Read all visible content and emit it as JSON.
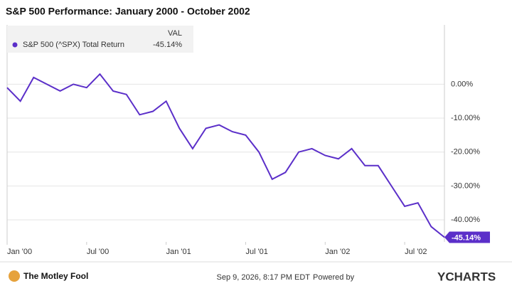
{
  "chart_data": {
    "type": "line",
    "title": "S&P 500 Performance: January 2000 - October 2002",
    "legend_header": "VAL",
    "x": [
      "2000-01",
      "2000-02",
      "2000-03",
      "2000-04",
      "2000-05",
      "2000-06",
      "2000-07",
      "2000-08",
      "2000-09",
      "2000-10",
      "2000-11",
      "2000-12",
      "2001-01",
      "2001-02",
      "2001-03",
      "2001-04",
      "2001-05",
      "2001-06",
      "2001-07",
      "2001-08",
      "2001-09",
      "2001-10",
      "2001-11",
      "2001-12",
      "2002-01",
      "2002-02",
      "2002-03",
      "2002-04",
      "2002-05",
      "2002-06",
      "2002-07",
      "2002-08",
      "2002-09",
      "2002-10"
    ],
    "series": [
      {
        "name": "S&P 500 (^SPX) Total Return",
        "color": "#5b2fc9",
        "values": [
          -1,
          -5,
          2,
          0,
          -2,
          0,
          -1,
          3,
          -2,
          -3,
          -9,
          -8,
          -5,
          -13,
          -19,
          -13,
          -12,
          -14,
          -15,
          -20,
          -28,
          -26,
          -20,
          -19,
          -21,
          -22,
          -19,
          -24,
          -24,
          -30,
          -36,
          -35,
          -42,
          -45.14
        ],
        "value_labels": [
          null,
          null,
          null,
          null,
          null,
          null,
          null,
          null,
          null,
          null,
          null,
          null,
          null,
          null,
          null,
          null,
          null,
          null,
          null,
          null,
          null,
          null,
          null,
          null,
          null,
          null,
          null,
          null,
          null,
          null,
          null,
          null,
          null,
          "-45.14%"
        ]
      }
    ],
    "xlim": [
      "2000-01",
      "2002-10"
    ],
    "xticks": [
      {
        "value": "2000-01",
        "label": "Jan '00"
      },
      {
        "value": "2000-07",
        "label": "Jul '00"
      },
      {
        "value": "2001-01",
        "label": "Jan '01"
      },
      {
        "value": "2001-07",
        "label": "Jul '01"
      },
      {
        "value": "2002-01",
        "label": "Jan '02"
      },
      {
        "value": "2002-07",
        "label": "Jul '02"
      }
    ],
    "ylim": [
      -46.5,
      17.5
    ],
    "yticks": [
      {
        "value": 0,
        "label": "0.00%"
      },
      {
        "value": -10,
        "label": "-10.00%"
      },
      {
        "value": -20,
        "label": "-20.00%"
      },
      {
        "value": -30,
        "label": "-30.00%"
      },
      {
        "value": -40,
        "label": "-40.00%"
      }
    ],
    "grid": true
  },
  "footer": {
    "logo": "The Motley Fool",
    "timestamp": "Sep 9, 2026, 8:17 PM EDT",
    "powered_by": "Powered by",
    "brand": "YCHARTS"
  }
}
